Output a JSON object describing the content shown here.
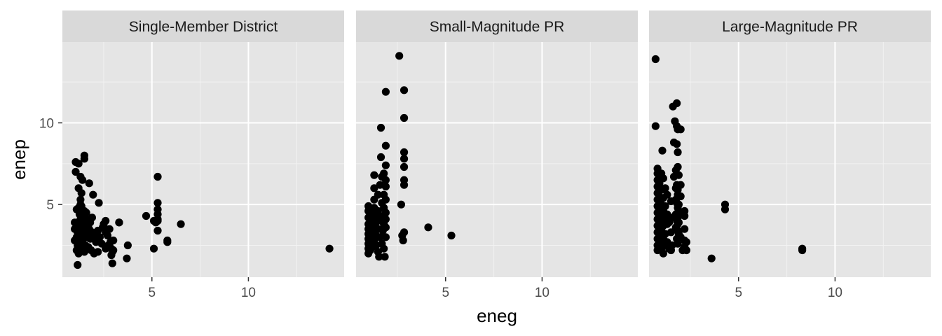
{
  "chart_data": {
    "type": "scatter",
    "xlabel": "eneg",
    "ylabel": "enep",
    "xlim": [
      0.36,
      14.96
    ],
    "ylim": [
      0.55,
      14.95
    ],
    "x_ticks": [
      5,
      10
    ],
    "x_tick_labels": [
      "5",
      "10"
    ],
    "y_ticks": [
      5,
      10
    ],
    "y_tick_labels": [
      "5",
      "10"
    ],
    "grid": true,
    "point_color": "#000000",
    "panel_background": "#e5e5e5",
    "strip_background": "#d9d9d9",
    "facets": [
      {
        "label": "Single-Member District",
        "points": [
          [
            1.0,
            3.9
          ],
          [
            1.0,
            3.5
          ],
          [
            1.0,
            2.8
          ],
          [
            1.05,
            7.0
          ],
          [
            1.05,
            7.6
          ],
          [
            1.1,
            2.2
          ],
          [
            1.1,
            3.0
          ],
          [
            1.1,
            4.7
          ],
          [
            1.15,
            1.3
          ],
          [
            1.15,
            2.5
          ],
          [
            1.15,
            3.3
          ],
          [
            1.15,
            3.9
          ],
          [
            1.2,
            2.0
          ],
          [
            1.2,
            4.8
          ],
          [
            1.2,
            6.0
          ],
          [
            1.2,
            7.5
          ],
          [
            1.25,
            2.6
          ],
          [
            1.25,
            3.0
          ],
          [
            1.25,
            3.6
          ],
          [
            1.25,
            4.4
          ],
          [
            1.3,
            2.2
          ],
          [
            1.3,
            4.1
          ],
          [
            1.3,
            5.3
          ],
          [
            1.3,
            6.7
          ],
          [
            1.3,
            5.0
          ],
          [
            1.35,
            2.7
          ],
          [
            1.35,
            3.2
          ],
          [
            1.35,
            4.9
          ],
          [
            1.35,
            5.7
          ],
          [
            1.4,
            2.3
          ],
          [
            1.4,
            3.8
          ],
          [
            1.4,
            4.3
          ],
          [
            1.4,
            6.5
          ],
          [
            1.45,
            2.9
          ],
          [
            1.45,
            3.4
          ],
          [
            1.5,
            7.8
          ],
          [
            1.5,
            8.0
          ],
          [
            1.5,
            2.1
          ],
          [
            1.5,
            4.6
          ],
          [
            1.55,
            3.7
          ],
          [
            1.55,
            2.5
          ],
          [
            1.6,
            3.1
          ],
          [
            1.6,
            4.1
          ],
          [
            1.6,
            4.5
          ],
          [
            1.7,
            2.4
          ],
          [
            1.7,
            3.0
          ],
          [
            1.75,
            6.3
          ],
          [
            1.75,
            3.5
          ],
          [
            1.8,
            2.9
          ],
          [
            1.8,
            3.9
          ],
          [
            1.85,
            2.2
          ],
          [
            1.9,
            3.3
          ],
          [
            1.9,
            4.2
          ],
          [
            1.95,
            5.6
          ],
          [
            2.0,
            2.0
          ],
          [
            2.0,
            3.1
          ],
          [
            2.1,
            2.7
          ],
          [
            2.2,
            2.1
          ],
          [
            2.2,
            3.4
          ],
          [
            2.25,
            5.1
          ],
          [
            2.3,
            3.0
          ],
          [
            2.4,
            2.6
          ],
          [
            2.45,
            3.6
          ],
          [
            2.5,
            3.8
          ],
          [
            2.6,
            2.3
          ],
          [
            2.6,
            3.3
          ],
          [
            2.6,
            4.0
          ],
          [
            2.7,
            3.1
          ],
          [
            2.75,
            2.5
          ],
          [
            2.8,
            3.5
          ],
          [
            2.85,
            2.7
          ],
          [
            2.9,
            2.3
          ],
          [
            2.9,
            1.9
          ],
          [
            2.95,
            2.1
          ],
          [
            2.95,
            1.4
          ],
          [
            3.0,
            2.8
          ],
          [
            3.0,
            2.2
          ],
          [
            3.3,
            3.9
          ],
          [
            3.3,
            3.9
          ],
          [
            3.7,
            1.7
          ],
          [
            3.75,
            2.5
          ],
          [
            4.7,
            4.3
          ],
          [
            5.1,
            4.0
          ],
          [
            5.1,
            2.3
          ],
          [
            5.2,
            3.9
          ],
          [
            5.3,
            6.7
          ],
          [
            5.3,
            5.1
          ],
          [
            5.3,
            4.7
          ],
          [
            5.3,
            4.4
          ],
          [
            5.3,
            4.1
          ],
          [
            5.3,
            3.4
          ],
          [
            5.3,
            4.0
          ],
          [
            5.8,
            2.8
          ],
          [
            5.8,
            2.7
          ],
          [
            6.5,
            3.8
          ],
          [
            14.2,
            2.3
          ]
        ]
      },
      {
        "label": "Small-Magnitude PR",
        "points": [
          [
            1.0,
            4.9
          ],
          [
            1.0,
            4.6
          ],
          [
            1.0,
            4.2
          ],
          [
            1.0,
            3.8
          ],
          [
            1.0,
            3.5
          ],
          [
            1.0,
            3.2
          ],
          [
            1.0,
            2.9
          ],
          [
            1.0,
            2.6
          ],
          [
            1.0,
            2.3
          ],
          [
            1.0,
            2.0
          ],
          [
            1.1,
            4.0
          ],
          [
            1.1,
            3.4
          ],
          [
            1.1,
            2.7
          ],
          [
            1.1,
            2.2
          ],
          [
            1.2,
            4.5
          ],
          [
            1.2,
            3.6
          ],
          [
            1.2,
            3.0
          ],
          [
            1.2,
            2.4
          ],
          [
            1.3,
            6.8
          ],
          [
            1.3,
            6.0
          ],
          [
            1.3,
            5.3
          ],
          [
            1.3,
            4.8
          ],
          [
            1.3,
            4.1
          ],
          [
            1.3,
            3.7
          ],
          [
            1.3,
            3.3
          ],
          [
            1.3,
            2.8
          ],
          [
            1.4,
            4.4
          ],
          [
            1.4,
            3.9
          ],
          [
            1.4,
            3.1
          ],
          [
            1.4,
            2.5
          ],
          [
            1.5,
            5.6
          ],
          [
            1.5,
            4.6
          ],
          [
            1.5,
            3.5
          ],
          [
            1.5,
            2.1
          ],
          [
            1.55,
            1.8
          ],
          [
            1.6,
            6.2
          ],
          [
            1.6,
            4.3
          ],
          [
            1.6,
            3.0
          ],
          [
            1.65,
            9.7
          ],
          [
            1.65,
            7.9
          ],
          [
            1.7,
            6.7
          ],
          [
            1.7,
            5.1
          ],
          [
            1.7,
            4.0
          ],
          [
            1.7,
            2.6
          ],
          [
            1.75,
            3.4
          ],
          [
            1.8,
            6.9
          ],
          [
            1.8,
            5.6
          ],
          [
            1.8,
            4.8
          ],
          [
            1.8,
            3.8
          ],
          [
            1.8,
            2.3
          ],
          [
            1.85,
            1.8
          ],
          [
            1.9,
            11.9
          ],
          [
            1.9,
            8.6
          ],
          [
            1.9,
            7.4
          ],
          [
            1.9,
            6.5
          ],
          [
            1.9,
            6.1
          ],
          [
            1.9,
            5.3
          ],
          [
            1.9,
            4.5
          ],
          [
            1.9,
            4.1
          ],
          [
            1.9,
            3.6
          ],
          [
            1.9,
            3.0
          ],
          [
            2.6,
            14.1
          ],
          [
            2.7,
            5.0
          ],
          [
            2.75,
            3.1
          ],
          [
            2.8,
            2.8
          ],
          [
            2.85,
            12.0
          ],
          [
            2.85,
            10.3
          ],
          [
            2.85,
            8.2
          ],
          [
            2.85,
            7.8
          ],
          [
            2.85,
            7.3
          ],
          [
            2.85,
            6.5
          ],
          [
            2.85,
            6.2
          ],
          [
            2.85,
            3.3
          ],
          [
            4.1,
            3.6
          ],
          [
            5.3,
            3.1
          ]
        ]
      },
      {
        "label": "Large-Magnitude PR",
        "points": [
          [
            0.7,
            13.9
          ],
          [
            0.7,
            9.8
          ],
          [
            0.8,
            7.2
          ],
          [
            0.8,
            6.9
          ],
          [
            0.8,
            6.5
          ],
          [
            0.8,
            6.1
          ],
          [
            0.8,
            5.7
          ],
          [
            0.8,
            5.3
          ],
          [
            0.8,
            4.9
          ],
          [
            0.8,
            4.5
          ],
          [
            0.8,
            4.1
          ],
          [
            0.8,
            3.7
          ],
          [
            0.8,
            3.3
          ],
          [
            0.8,
            2.9
          ],
          [
            0.8,
            2.5
          ],
          [
            0.8,
            2.2
          ],
          [
            0.9,
            6.3
          ],
          [
            0.9,
            5.5
          ],
          [
            0.9,
            4.7
          ],
          [
            0.9,
            3.9
          ],
          [
            0.9,
            3.1
          ],
          [
            0.9,
            2.6
          ],
          [
            1.0,
            6.9
          ],
          [
            1.0,
            5.9
          ],
          [
            1.0,
            5.0
          ],
          [
            1.0,
            4.3
          ],
          [
            1.0,
            3.5
          ],
          [
            1.0,
            2.8
          ],
          [
            1.0,
            2.3
          ],
          [
            1.05,
            8.3
          ],
          [
            1.1,
            6.6
          ],
          [
            1.1,
            5.4
          ],
          [
            1.1,
            4.6
          ],
          [
            1.1,
            3.7
          ],
          [
            1.1,
            2.9
          ],
          [
            1.1,
            2.0
          ],
          [
            1.2,
            6.0
          ],
          [
            1.2,
            4.9
          ],
          [
            1.2,
            4.0
          ],
          [
            1.2,
            3.2
          ],
          [
            1.2,
            2.5
          ],
          [
            1.3,
            5.6
          ],
          [
            1.3,
            4.4
          ],
          [
            1.3,
            3.8
          ],
          [
            1.3,
            2.7
          ],
          [
            1.4,
            3.9
          ],
          [
            1.4,
            2.3
          ],
          [
            1.5,
            5.2
          ],
          [
            1.5,
            4.2
          ],
          [
            1.5,
            3.3
          ],
          [
            1.5,
            2.2
          ],
          [
            1.55,
            2.5
          ],
          [
            1.6,
            11.0
          ],
          [
            1.65,
            8.8
          ],
          [
            1.65,
            6.7
          ],
          [
            1.7,
            10.1
          ],
          [
            1.75,
            7.1
          ],
          [
            1.75,
            6.0
          ],
          [
            1.75,
            5.3
          ],
          [
            1.75,
            4.4
          ],
          [
            1.75,
            3.6
          ],
          [
            1.8,
            11.2
          ],
          [
            1.8,
            9.8
          ],
          [
            1.8,
            8.7
          ],
          [
            1.8,
            6.2
          ],
          [
            1.8,
            5.1
          ],
          [
            1.8,
            4.0
          ],
          [
            1.8,
            2.9
          ],
          [
            1.85,
            9.6
          ],
          [
            1.85,
            8.2
          ],
          [
            1.85,
            7.3
          ],
          [
            1.85,
            5.9
          ],
          [
            1.85,
            5.6
          ],
          [
            1.85,
            4.8
          ],
          [
            1.85,
            4.5
          ],
          [
            1.85,
            4.2
          ],
          [
            1.85,
            3.8
          ],
          [
            1.85,
            3.4
          ],
          [
            1.85,
            2.6
          ],
          [
            1.9,
            6.8
          ],
          [
            1.9,
            5.0
          ],
          [
            1.9,
            4.4
          ],
          [
            1.9,
            3.9
          ],
          [
            1.9,
            3.2
          ],
          [
            2.0,
            9.6
          ],
          [
            2.0,
            6.2
          ],
          [
            2.0,
            5.5
          ],
          [
            2.0,
            3.0
          ],
          [
            2.1,
            2.2
          ],
          [
            2.2,
            4.6
          ],
          [
            2.2,
            4.3
          ],
          [
            2.2,
            3.5
          ],
          [
            2.2,
            2.8
          ],
          [
            2.2,
            2.4
          ],
          [
            2.3,
            2.2
          ],
          [
            2.3,
            2.7
          ],
          [
            3.6,
            1.7
          ],
          [
            4.3,
            5.0
          ],
          [
            4.3,
            4.7
          ],
          [
            8.3,
            2.3
          ],
          [
            8.3,
            2.2
          ]
        ]
      }
    ]
  }
}
